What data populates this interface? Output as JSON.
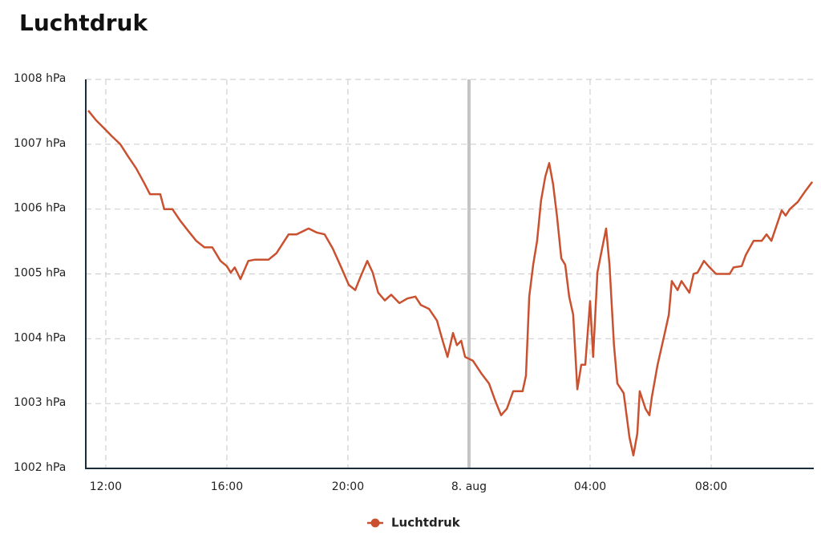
{
  "chart_data": {
    "type": "line",
    "title": "Luchtdruk",
    "xlim": [
      11.34,
      35.39
    ],
    "xticks": [
      {
        "value": 12,
        "label": "12:00"
      },
      {
        "value": 16,
        "label": "16:00"
      },
      {
        "value": 20,
        "label": "20:00"
      },
      {
        "value": 24,
        "label": "8. aug"
      },
      {
        "value": 28,
        "label": "04:00"
      },
      {
        "value": 32,
        "label": "08:00"
      }
    ],
    "ylim": [
      1002,
      1008
    ],
    "yticks": [
      {
        "value": 1002,
        "label": "1002 hPa"
      },
      {
        "value": 1003,
        "label": "1003 hPa"
      },
      {
        "value": 1004,
        "label": "1004 hPa"
      },
      {
        "value": 1005,
        "label": "1005 hPa"
      },
      {
        "value": 1006,
        "label": "1006 hPa"
      },
      {
        "value": 1007,
        "label": "1007 hPa"
      },
      {
        "value": 1008,
        "label": "1008 hPa"
      }
    ],
    "grid": true,
    "legend": "bottom",
    "x": [
      11.42,
      11.68,
      12.0,
      12.21,
      12.48,
      12.74,
      13.0,
      13.27,
      13.46,
      13.8,
      13.93,
      14.2,
      14.46,
      14.73,
      14.99,
      15.26,
      15.52,
      15.79,
      16.0,
      16.13,
      16.26,
      16.45,
      16.71,
      16.93,
      17.38,
      17.64,
      18.04,
      18.3,
      18.7,
      18.96,
      19.23,
      19.5,
      19.76,
      20.03,
      20.24,
      20.42,
      20.64,
      20.82,
      21.0,
      21.22,
      21.43,
      21.7,
      21.96,
      22.23,
      22.41,
      22.68,
      22.94,
      23.13,
      23.29,
      23.47,
      23.6,
      23.74,
      23.87,
      24.13,
      24.4,
      24.66,
      24.87,
      25.06,
      25.25,
      25.46,
      25.77,
      25.88,
      25.99,
      26.12,
      26.25,
      26.38,
      26.52,
      26.65,
      26.78,
      26.91,
      27.05,
      27.18,
      27.31,
      27.44,
      27.58,
      27.71,
      27.84,
      28.0,
      28.1,
      28.24,
      28.37,
      28.53,
      28.64,
      28.79,
      28.9,
      29.11,
      29.3,
      29.43,
      29.56,
      29.64,
      29.83,
      29.96,
      30.04,
      30.23,
      30.44,
      30.6,
      30.7,
      30.89,
      31.02,
      31.28,
      31.42,
      31.55,
      31.76,
      31.95,
      32.16,
      32.61,
      32.74,
      33.01,
      33.14,
      33.4,
      33.67,
      33.83,
      33.99,
      34.33,
      34.46,
      34.6,
      34.86,
      35.13,
      35.34
    ],
    "series": [
      {
        "name": "Luchtdruk",
        "color": "#c9512f",
        "values": [
          1007.52,
          1007.37,
          1007.22,
          1007.12,
          1007.0,
          1006.81,
          1006.63,
          1006.4,
          1006.23,
          1006.23,
          1006.0,
          1006.0,
          1005.82,
          1005.66,
          1005.51,
          1005.41,
          1005.41,
          1005.2,
          1005.12,
          1005.02,
          1005.1,
          1004.92,
          1005.2,
          1005.22,
          1005.22,
          1005.32,
          1005.61,
          1005.61,
          1005.7,
          1005.64,
          1005.61,
          1005.39,
          1005.12,
          1004.83,
          1004.75,
          1004.96,
          1005.2,
          1005.02,
          1004.71,
          1004.59,
          1004.68,
          1004.55,
          1004.62,
          1004.65,
          1004.52,
          1004.46,
          1004.28,
          1003.97,
          1003.72,
          1004.09,
          1003.9,
          1003.97,
          1003.72,
          1003.66,
          1003.47,
          1003.31,
          1003.04,
          1002.82,
          1002.92,
          1003.19,
          1003.19,
          1003.43,
          1004.65,
          1005.14,
          1005.51,
          1006.13,
          1006.5,
          1006.71,
          1006.38,
          1005.88,
          1005.24,
          1005.14,
          1004.65,
          1004.37,
          1003.22,
          1003.6,
          1003.6,
          1004.58,
          1003.72,
          1005.02,
          1005.33,
          1005.7,
          1005.14,
          1003.9,
          1003.31,
          1003.16,
          1002.48,
          1002.2,
          1002.54,
          1003.19,
          1002.92,
          1002.82,
          1003.1,
          1003.6,
          1004.03,
          1004.37,
          1004.89,
          1004.75,
          1004.89,
          1004.71,
          1005.0,
          1005.02,
          1005.2,
          1005.1,
          1005.0,
          1005.0,
          1005.1,
          1005.12,
          1005.29,
          1005.51,
          1005.51,
          1005.61,
          1005.51,
          1005.98,
          1005.9,
          1006.0,
          1006.11,
          1006.29,
          1006.42
        ]
      }
    ]
  }
}
